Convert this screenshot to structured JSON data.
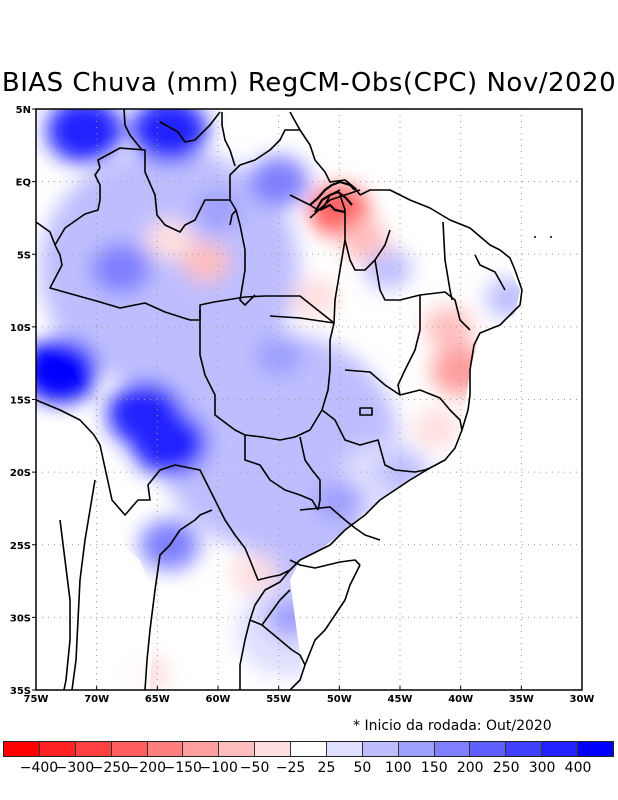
{
  "title": "BIAS Chuva (mm) RegCM-Obs(CPC) Nov/2020",
  "note": "* Inicio da rodada: Out/2020",
  "map": {
    "lon_range": [
      -75,
      -30
    ],
    "lat_range": [
      -35,
      5
    ],
    "x_ticks": [
      {
        "lon": -75,
        "label": "75W"
      },
      {
        "lon": -70,
        "label": "70W"
      },
      {
        "lon": -65,
        "label": "65W"
      },
      {
        "lon": -60,
        "label": "60W"
      },
      {
        "lon": -55,
        "label": "55W"
      },
      {
        "lon": -50,
        "label": "50W"
      },
      {
        "lon": -45,
        "label": "45W"
      },
      {
        "lon": -40,
        "label": "40W"
      },
      {
        "lon": -35,
        "label": "35W"
      },
      {
        "lon": -30,
        "label": "30W"
      }
    ],
    "y_ticks": [
      {
        "lat": 5,
        "label": "5N"
      },
      {
        "lat": 0,
        "label": "EQ"
      },
      {
        "lat": -5,
        "label": "5S"
      },
      {
        "lat": -10,
        "label": "10S"
      },
      {
        "lat": -15,
        "label": "15S"
      },
      {
        "lat": -20,
        "label": "20S"
      },
      {
        "lat": -25,
        "label": "25S"
      },
      {
        "lat": -30,
        "label": "30S"
      },
      {
        "lat": -35,
        "label": "35S"
      }
    ]
  },
  "colorbar": {
    "colors": [
      "#ff0000",
      "#ff2222",
      "#ff4040",
      "#ff5f5f",
      "#ff7f7f",
      "#ff9f9f",
      "#ffbebe",
      "#ffdfdf",
      "#ffffff",
      "#dfdfff",
      "#bebeff",
      "#9f9fff",
      "#7f7fff",
      "#5f5fff",
      "#4040ff",
      "#2222ff",
      "#0000ff"
    ],
    "labels": [
      "-400",
      "-300",
      "-250",
      "-200",
      "-150",
      "-100",
      "-50",
      "-25",
      "25",
      "50",
      "100",
      "150",
      "200",
      "250",
      "300",
      "400"
    ]
  },
  "field_blobs": [
    {
      "lon": -71,
      "lat": 3.5,
      "value": 300
    },
    {
      "lon": -64,
      "lat": 3.5,
      "value": 350
    },
    {
      "lon": -73,
      "lat": -13,
      "value": 400
    },
    {
      "lon": -66,
      "lat": -16,
      "value": 350
    },
    {
      "lon": -64,
      "lat": -18,
      "value": 300
    },
    {
      "lon": -68,
      "lat": -6,
      "value": 150
    },
    {
      "lon": -60,
      "lat": -2,
      "value": 100
    },
    {
      "lon": -55,
      "lat": 0,
      "value": 150
    },
    {
      "lon": -55,
      "lat": -12,
      "value": 100
    },
    {
      "lon": -50,
      "lat": -22,
      "value": 100
    },
    {
      "lon": -54,
      "lat": -30,
      "value": 100
    },
    {
      "lon": -64,
      "lat": -25,
      "value": 150
    },
    {
      "lon": -45,
      "lat": -20,
      "value": 50
    },
    {
      "lon": -46,
      "lat": -6,
      "value": 50
    },
    {
      "lon": -36,
      "lat": -8,
      "value": 50
    },
    {
      "lon": -61,
      "lat": -5.5,
      "value": -100
    },
    {
      "lon": -64,
      "lat": -4,
      "value": -50
    },
    {
      "lon": -52,
      "lat": -8,
      "value": -50
    },
    {
      "lon": -50,
      "lat": -2,
      "value": -250
    },
    {
      "lon": -48,
      "lat": -4,
      "value": -100
    },
    {
      "lon": -41,
      "lat": -10,
      "value": -100
    },
    {
      "lon": -40,
      "lat": -13,
      "value": -150
    },
    {
      "lon": -42,
      "lat": -17,
      "value": -50
    },
    {
      "lon": -57,
      "lat": -27,
      "value": -50
    },
    {
      "lon": -66,
      "lat": -34,
      "value": -50
    }
  ]
}
